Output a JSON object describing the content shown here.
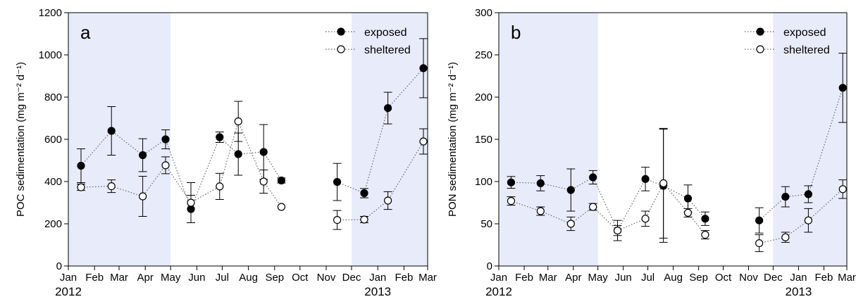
{
  "chart_data": [
    {
      "type": "scatter",
      "panel_label": "a",
      "ylabel": "POC sedimentation (mg m⁻² d⁻¹)",
      "ylim": [
        0,
        1200
      ],
      "yticks": [
        0,
        200,
        400,
        600,
        800,
        1000,
        1200
      ],
      "xlim": [
        "2012-01-01",
        "2013-03-01"
      ],
      "x_month_ticks": [
        {
          "date": "2012-01-01",
          "label": "Jan"
        },
        {
          "date": "2012-02-01",
          "label": "Feb"
        },
        {
          "date": "2012-03-01",
          "label": "Mar"
        },
        {
          "date": "2012-04-01",
          "label": "Apr"
        },
        {
          "date": "2012-05-01",
          "label": "May"
        },
        {
          "date": "2012-06-01",
          "label": "Jun"
        },
        {
          "date": "2012-07-01",
          "label": "Jul"
        },
        {
          "date": "2012-08-01",
          "label": "Aug"
        },
        {
          "date": "2012-09-01",
          "label": "Sep"
        },
        {
          "date": "2012-10-01",
          "label": "Oct"
        },
        {
          "date": "2012-11-01",
          "label": "Nov"
        },
        {
          "date": "2012-12-01",
          "label": "Dec"
        },
        {
          "date": "2013-01-01",
          "label": "Jan"
        },
        {
          "date": "2013-02-01",
          "label": "Feb"
        },
        {
          "date": "2013-03-01",
          "label": "Mar"
        }
      ],
      "x_year_labels": [
        {
          "date": "2012-01-01",
          "label": "2012"
        },
        {
          "date": "2013-01-01",
          "label": "2013"
        }
      ],
      "shaded_periods": [
        {
          "start": "2012-01-01",
          "end": "2012-05-01"
        },
        {
          "start": "2012-12-01",
          "end": "2013-03-01"
        }
      ],
      "legend_position": "top-right",
      "series": [
        {
          "name": "exposed",
          "marker": "filled-circle",
          "points": [
            {
              "x": "2012-01-16",
              "y": 475,
              "err": 80
            },
            {
              "x": "2012-02-21",
              "y": 640,
              "err": 115
            },
            {
              "x": "2012-03-29",
              "y": 525,
              "err": 78
            },
            {
              "x": "2012-04-25",
              "y": 600,
              "err": 45
            },
            {
              "x": "2012-05-25",
              "y": 270,
              "err": 65
            },
            {
              "x": "2012-06-28",
              "y": 610,
              "err": 25
            },
            {
              "x": "2012-07-20",
              "y": 530,
              "err": 100
            },
            {
              "x": "2012-08-19",
              "y": 540,
              "err": 130
            },
            {
              "x": "2012-09-09",
              "y": 405,
              "err": 12
            },
            {
              "x": "2012-11-14",
              "y": 398,
              "err": 88
            },
            {
              "x": "2012-12-16",
              "y": 345,
              "err": 22
            },
            {
              "x": "2013-01-13",
              "y": 748,
              "err": 75
            },
            {
              "x": "2013-02-24",
              "y": 937,
              "err": 140
            }
          ]
        },
        {
          "name": "sheltered",
          "marker": "open-circle",
          "points": [
            {
              "x": "2012-01-16",
              "y": 373,
              "err": 15
            },
            {
              "x": "2012-02-21",
              "y": 378,
              "err": 30
            },
            {
              "x": "2012-03-29",
              "y": 330,
              "err": 95
            },
            {
              "x": "2012-04-25",
              "y": 477,
              "err": 40
            },
            {
              "x": "2012-05-25",
              "y": 300,
              "err": 95
            },
            {
              "x": "2012-06-28",
              "y": 377,
              "err": 62
            },
            {
              "x": "2012-07-20",
              "y": 685,
              "err": 95
            },
            {
              "x": "2012-08-19",
              "y": 400,
              "err": 55
            },
            {
              "x": "2012-09-09",
              "y": 280,
              "err": 0
            },
            {
              "x": "2012-11-14",
              "y": 218,
              "err": 45
            },
            {
              "x": "2012-12-16",
              "y": 220,
              "err": 15
            },
            {
              "x": "2013-01-13",
              "y": 310,
              "err": 42
            },
            {
              "x": "2013-02-24",
              "y": 590,
              "err": 60
            }
          ]
        }
      ]
    },
    {
      "type": "scatter",
      "panel_label": "b",
      "ylabel": "PON sedimentation (mg m⁻² d⁻¹)",
      "ylim": [
        0,
        300
      ],
      "yticks": [
        0,
        50,
        100,
        150,
        200,
        250,
        300
      ],
      "xlim": [
        "2012-01-01",
        "2013-03-01"
      ],
      "x_month_ticks": [
        {
          "date": "2012-01-01",
          "label": "Jan"
        },
        {
          "date": "2012-02-01",
          "label": "Feb"
        },
        {
          "date": "2012-03-01",
          "label": "Mar"
        },
        {
          "date": "2012-04-01",
          "label": "Apr"
        },
        {
          "date": "2012-05-01",
          "label": "May"
        },
        {
          "date": "2012-06-01",
          "label": "Jun"
        },
        {
          "date": "2012-07-01",
          "label": "Jul"
        },
        {
          "date": "2012-08-01",
          "label": "Aug"
        },
        {
          "date": "2012-09-01",
          "label": "Sep"
        },
        {
          "date": "2012-10-01",
          "label": "Oct"
        },
        {
          "date": "2012-11-01",
          "label": "Nov"
        },
        {
          "date": "2012-12-01",
          "label": "Dec"
        },
        {
          "date": "2013-01-01",
          "label": "Jan"
        },
        {
          "date": "2013-02-01",
          "label": "Feb"
        },
        {
          "date": "2013-03-01",
          "label": "Mar"
        }
      ],
      "x_year_labels": [
        {
          "date": "2012-01-01",
          "label": "2012"
        },
        {
          "date": "2013-01-01",
          "label": "2013"
        }
      ],
      "shaded_periods": [
        {
          "start": "2012-01-01",
          "end": "2012-05-01"
        },
        {
          "start": "2012-12-01",
          "end": "2013-03-01"
        }
      ],
      "legend_position": "top-right",
      "series": [
        {
          "name": "exposed",
          "marker": "filled-circle",
          "points": [
            {
              "x": "2012-01-16",
              "y": 99,
              "err": 7
            },
            {
              "x": "2012-02-21",
              "y": 98,
              "err": 9
            },
            {
              "x": "2012-03-29",
              "y": 90,
              "err": 25
            },
            {
              "x": "2012-04-25",
              "y": 105,
              "err": 8
            },
            {
              "x": "2012-05-25",
              "y": 42,
              "err": 6
            },
            {
              "x": "2012-06-28",
              "y": 103,
              "err": 14
            },
            {
              "x": "2012-07-20",
              "y": 95,
              "err": 67
            },
            {
              "x": "2012-08-19",
              "y": 80,
              "err": 16
            },
            {
              "x": "2012-09-09",
              "y": 56,
              "err": 8
            },
            {
              "x": "2012-11-14",
              "y": 54,
              "err": 15
            },
            {
              "x": "2012-12-16",
              "y": 82,
              "err": 12
            },
            {
              "x": "2013-01-13",
              "y": 85,
              "err": 10
            },
            {
              "x": "2013-02-24",
              "y": 211,
              "err": 41
            }
          ]
        },
        {
          "name": "sheltered",
          "marker": "open-circle",
          "points": [
            {
              "x": "2012-01-16",
              "y": 77,
              "err": 5
            },
            {
              "x": "2012-02-21",
              "y": 65,
              "err": 5
            },
            {
              "x": "2012-03-29",
              "y": 50,
              "err": 8
            },
            {
              "x": "2012-04-25",
              "y": 70,
              "err": 4
            },
            {
              "x": "2012-05-25",
              "y": 42,
              "err": 12
            },
            {
              "x": "2012-06-28",
              "y": 56,
              "err": 9
            },
            {
              "x": "2012-07-20",
              "y": 98,
              "err": 65
            },
            {
              "x": "2012-08-19",
              "y": 63,
              "err": 5
            },
            {
              "x": "2012-09-09",
              "y": 37,
              "err": 5
            },
            {
              "x": "2012-11-14",
              "y": 27,
              "err": 10
            },
            {
              "x": "2012-12-16",
              "y": 34,
              "err": 6
            },
            {
              "x": "2013-01-13",
              "y": 54,
              "err": 14
            },
            {
              "x": "2013-02-24",
              "y": 91,
              "err": 11
            }
          ]
        }
      ]
    }
  ],
  "colors": {
    "shade": "#e8ebfa",
    "marker_line": "#000000",
    "connector": "#666666",
    "axis": "#000000"
  }
}
